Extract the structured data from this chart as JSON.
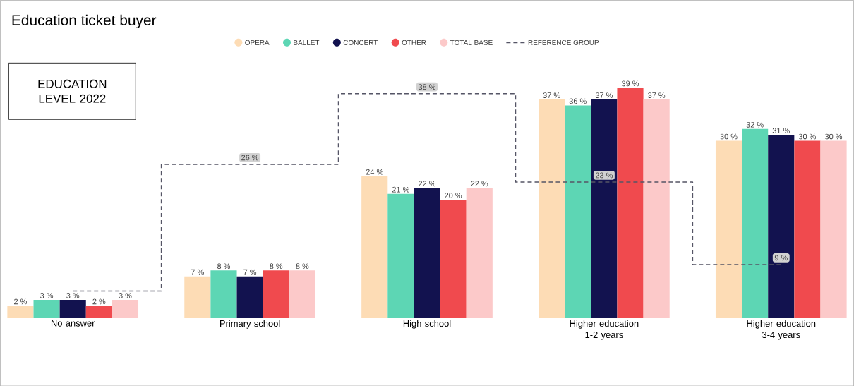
{
  "chart_data": {
    "type": "bar",
    "title": "Education ticket buyer",
    "annotations": [
      "EDUCATION LEVEL 2022"
    ],
    "categories": [
      "No answer",
      "Primary school",
      "High school",
      "Higher education 1-2 years",
      "Higher education 3-4 years"
    ],
    "series": [
      {
        "name": "OPERA",
        "color": "#fddcb5",
        "values": [
          2,
          7,
          24,
          37,
          30
        ],
        "value_labels": [
          "2 %",
          "7 %",
          "24 %",
          "37 %",
          "30 %"
        ]
      },
      {
        "name": "BALLET",
        "color": "#5dd6b4",
        "values": [
          3,
          8,
          21,
          36,
          32
        ],
        "value_labels": [
          "3 %",
          "8 %",
          "21 %",
          "36 %",
          "32 %"
        ]
      },
      {
        "name": "CONCERT",
        "color": "#12124f",
        "values": [
          3,
          7,
          22,
          37,
          31
        ],
        "value_labels": [
          "3 %",
          "7 %",
          "22 %",
          "37 %",
          "31 %"
        ]
      },
      {
        "name": "OTHER",
        "color": "#f04a4e",
        "values": [
          2,
          8,
          20,
          39,
          30
        ],
        "value_labels": [
          "2 %",
          "8 %",
          "20 %",
          "39 %",
          "30 %"
        ]
      },
      {
        "name": "TOTAL BASE",
        "color": "#fcc9c9",
        "values": [
          3,
          8,
          22,
          37,
          30
        ],
        "value_labels": [
          "3 %",
          "8 %",
          "22 %",
          "37 %",
          "30 %"
        ]
      },
      {
        "name": "REFERENCE GROUP",
        "type": "step",
        "line_style": "dashed",
        "color": "#555566",
        "values": [
          4.5,
          26,
          38,
          23,
          9
        ],
        "value_labels": [
          null,
          "26 %",
          "38 %",
          "23 %",
          "9 %"
        ]
      }
    ],
    "tick_labels": "x",
    "legend": "top"
  }
}
